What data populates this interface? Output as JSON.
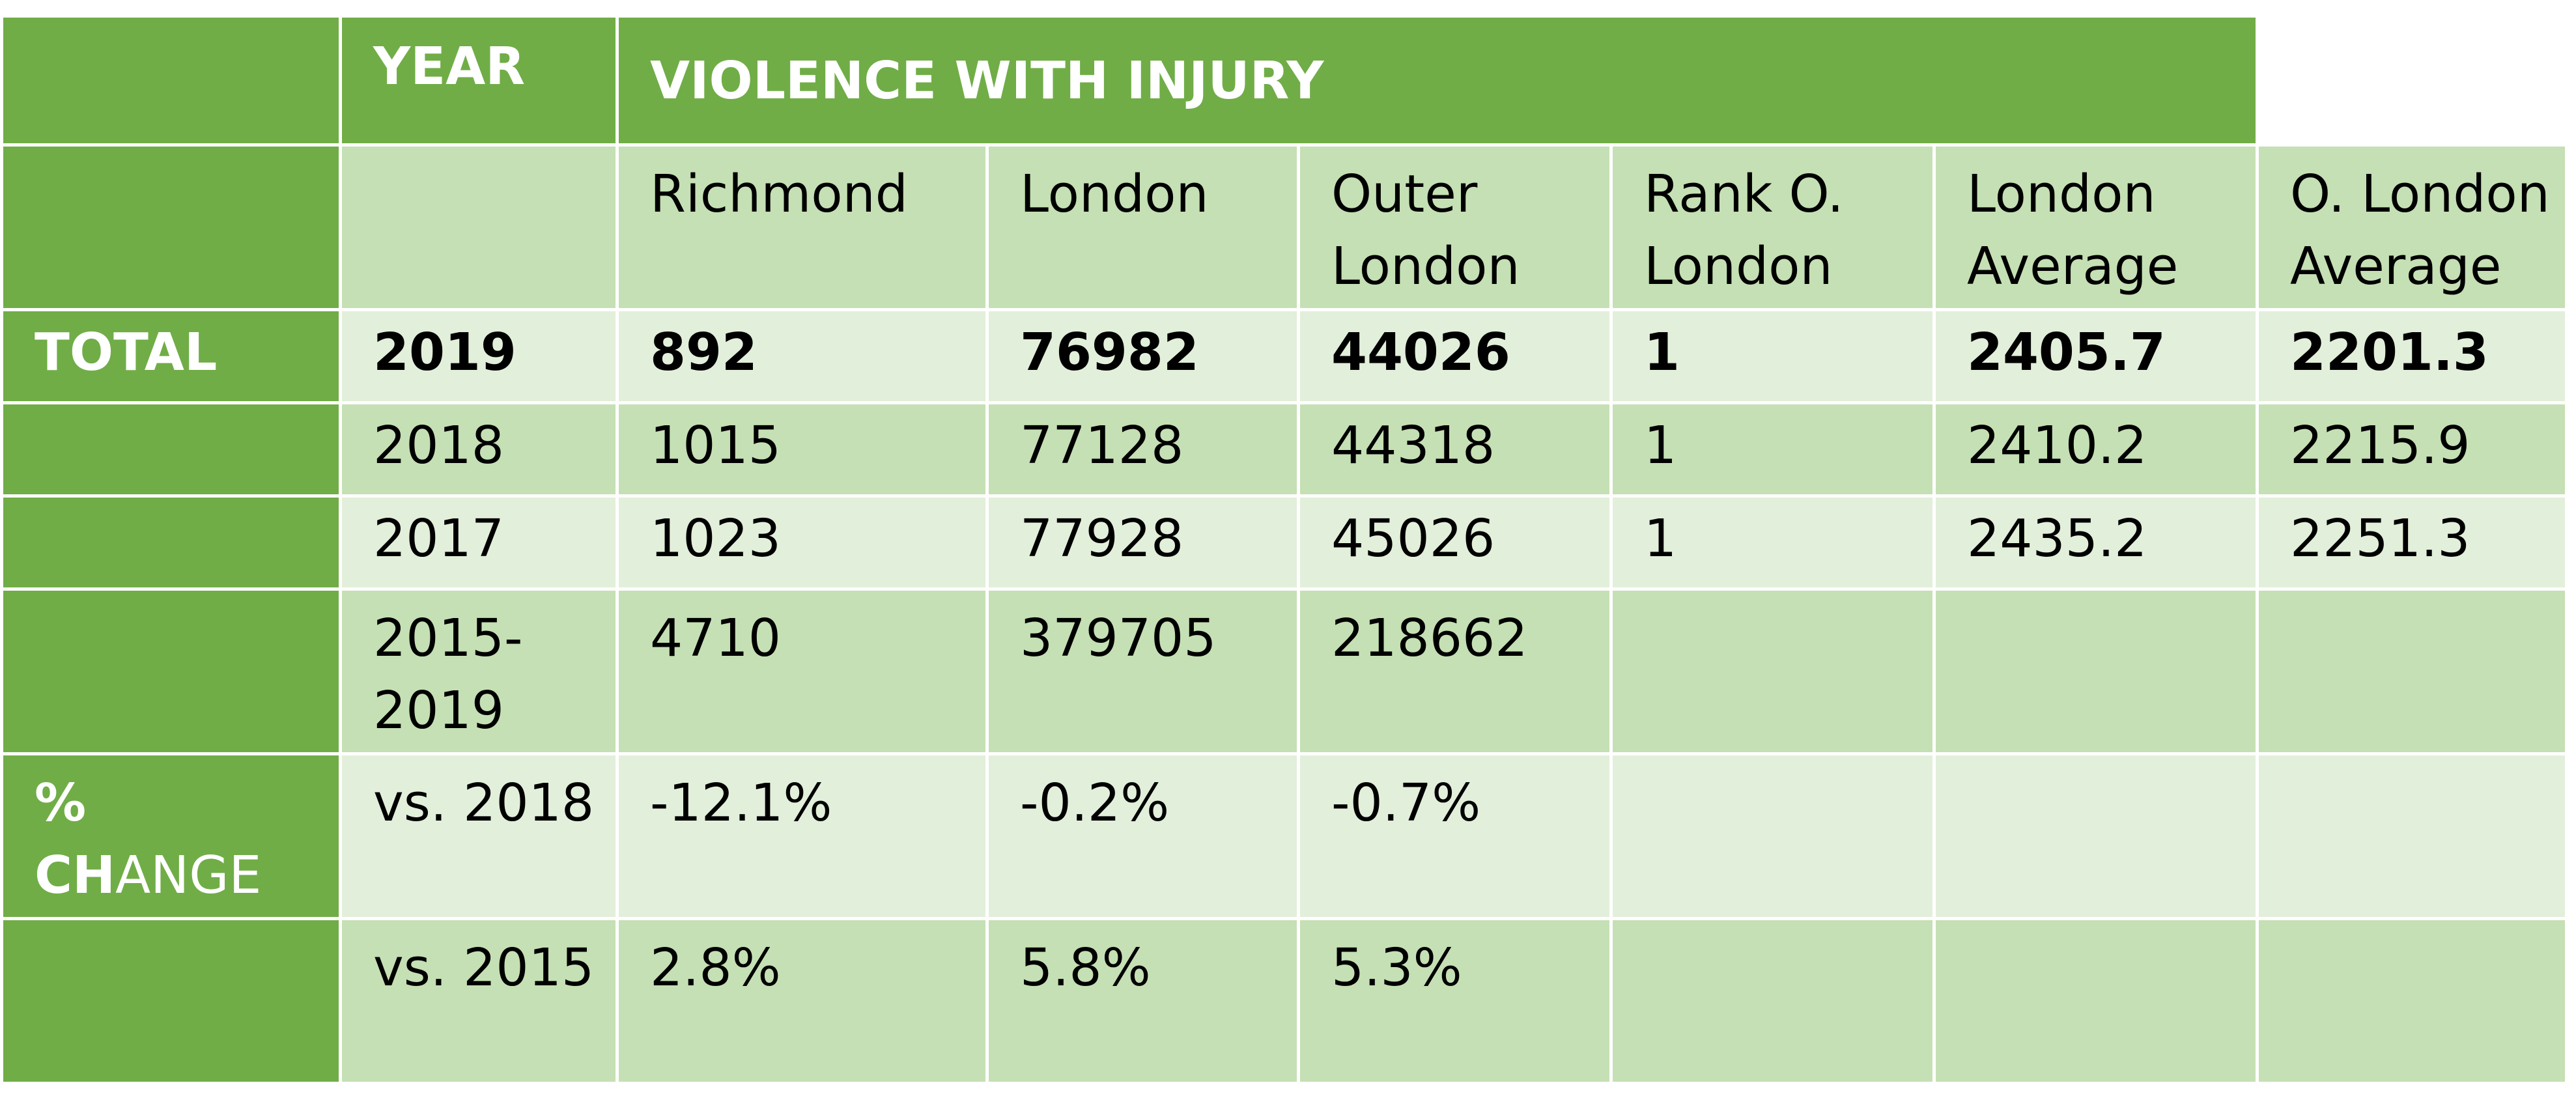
{
  "header": {
    "corner": "",
    "year_label": "YEAR",
    "metric_title": "VIOLENCE WITH INJURY"
  },
  "columns": [
    "",
    "Richmond",
    "London",
    "Outer London",
    "Rank O. London",
    "London Average",
    "O. London Average"
  ],
  "column_lines": {
    "richmond": [
      "Richmond"
    ],
    "london": [
      "London"
    ],
    "outer_london": [
      "Outer",
      "London"
    ],
    "rank": [
      "Rank O.",
      "London"
    ],
    "london_avg": [
      "London",
      "Average"
    ],
    "o_london_avg": [
      "O. London",
      "Average"
    ]
  },
  "rows": [
    {
      "group": "TOTAL",
      "year": "2019",
      "richmond": "892",
      "london": "76982",
      "outer_london": "44026",
      "rank": "1",
      "london_avg": "2405.7",
      "o_london_avg": "2201.3"
    },
    {
      "group": "",
      "year": "2018",
      "richmond": "1015",
      "london": "77128",
      "outer_london": "44318",
      "rank": "1",
      "london_avg": "2410.2",
      "o_london_avg": "2215.9"
    },
    {
      "group": "",
      "year": "2017",
      "richmond": "1023",
      "london": "77928",
      "outer_london": "45026",
      "rank": "1",
      "london_avg": "2435.2",
      "o_london_avg": "2251.3"
    },
    {
      "group": "",
      "year_lines": [
        "2015-",
        "2019"
      ],
      "richmond": "4710",
      "london": "379705",
      "outer_london": "218662",
      "rank": "",
      "london_avg": "",
      "o_london_avg": ""
    },
    {
      "group_lines": [
        "%",
        "CH",
        "ANGE"
      ],
      "year": "vs. 2018",
      "richmond": "-12.1%",
      "london": "-0.2%",
      "outer_london": "-0.7%",
      "rank": "",
      "london_avg": "",
      "o_london_avg": ""
    },
    {
      "group": "",
      "year": "vs. 2015",
      "richmond": "2.8%",
      "london": "5.8%",
      "outer_london": "5.3%",
      "rank": "",
      "london_avg": "",
      "o_london_avg": ""
    }
  ],
  "colors": {
    "header_green": "#70ad47",
    "row_dark": "#c5e0b4",
    "row_light": "#e2efda",
    "header_text": "#ffffff"
  }
}
